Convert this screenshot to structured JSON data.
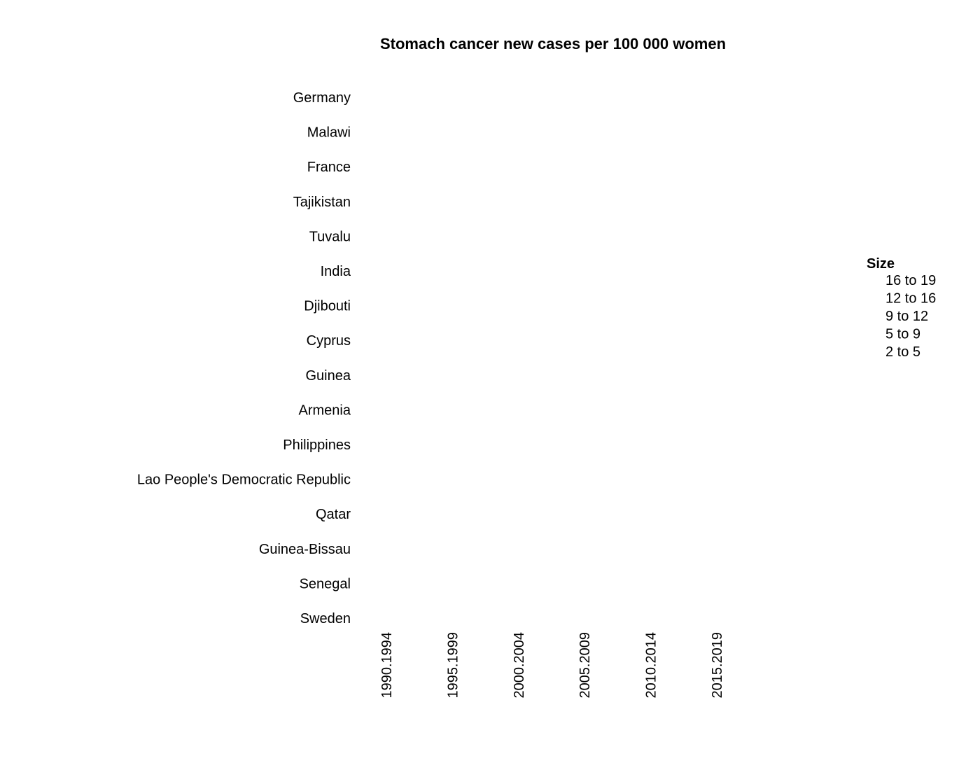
{
  "chart_data": {
    "type": "scatter",
    "title": "Stomach cancer new cases per 100 000 women",
    "xlabel": "",
    "ylabel": "",
    "x_categories": [
      "1990.1994",
      "1995.1999",
      "2000.2004",
      "2005.2009",
      "2010.2014",
      "2015.2019"
    ],
    "y_categories": [
      "Germany",
      "Malawi",
      "France",
      "Tajikistan",
      "Tuvalu",
      "India",
      "Djibouti",
      "Cyprus",
      "Guinea",
      "Armenia",
      "Philippines",
      "Lao People's Democratic Republic",
      "Qatar",
      "Guinea-Bissau",
      "Senegal",
      "Sweden"
    ],
    "points": [],
    "grid": false,
    "legend": {
      "title": "Size",
      "placement": "right",
      "entries": [
        "16 to 19",
        "12 to 16",
        "9 to 12",
        "5 to 9",
        "2 to 5"
      ]
    }
  }
}
